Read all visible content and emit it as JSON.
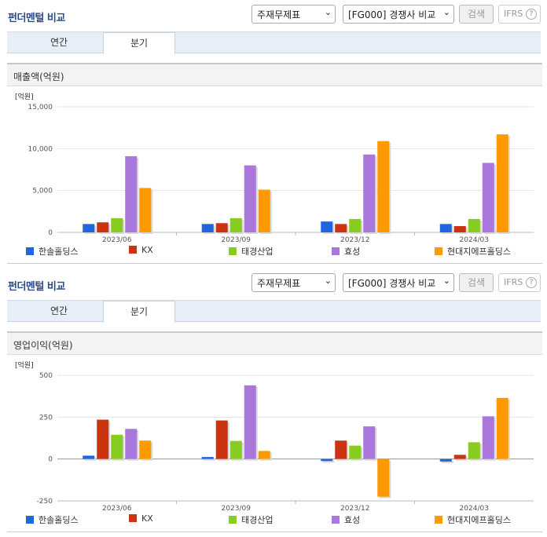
{
  "header": {
    "title": "펀더멘털 비교",
    "select_statement": "주재무제표",
    "select_peer": "[FG000] 경쟁사 비교",
    "search_label": "검색",
    "ifrs_label": "IFRS",
    "help_label": "?"
  },
  "tabs": {
    "annual": "연간",
    "quarterly": "분기"
  },
  "colors": {
    "한솔홀딩스": "#2266dd",
    "KX": "#cc3311",
    "태경산업": "#88cc22",
    "효성": "#aa77dd",
    "현대지에프홀딩스": "#ff9900"
  },
  "chart_data": [
    {
      "type": "bar",
      "title": "매출액(억원)",
      "unit": "[억원]",
      "categories": [
        "2023/06",
        "2023/09",
        "2023/12",
        "2024/03"
      ],
      "ylim": [
        0,
        15000
      ],
      "yticks": [
        0,
        5000,
        10000,
        15000
      ],
      "ytick_labels": [
        "0",
        "5,000",
        "10,000",
        "15,000"
      ],
      "series": [
        {
          "name": "한솔홀딩스",
          "values": [
            1000,
            1000,
            1300,
            1000
          ]
        },
        {
          "name": "KX",
          "values": [
            1200,
            1100,
            1000,
            750
          ]
        },
        {
          "name": "태경산업",
          "values": [
            1700,
            1700,
            1600,
            1600
          ]
        },
        {
          "name": "효성",
          "values": [
            9100,
            8000,
            9300,
            8300
          ]
        },
        {
          "name": "현대지에프홀딩스",
          "values": [
            5300,
            5100,
            10900,
            11700
          ]
        }
      ]
    },
    {
      "type": "bar",
      "title": "영업이익(억원)",
      "unit": "[억원]",
      "categories": [
        "2023/06",
        "2023/09",
        "2023/12",
        "2024/03"
      ],
      "ylim": [
        -250,
        500
      ],
      "yticks": [
        -250,
        0,
        250,
        500
      ],
      "ytick_labels": [
        "-250",
        "0",
        "250",
        "500"
      ],
      "series": [
        {
          "name": "한솔홀딩스",
          "values": [
            20,
            12,
            -12,
            -15
          ]
        },
        {
          "name": "KX",
          "values": [
            235,
            230,
            110,
            25
          ]
        },
        {
          "name": "태경산업",
          "values": [
            145,
            108,
            80,
            100
          ]
        },
        {
          "name": "효성",
          "values": [
            180,
            440,
            195,
            255
          ]
        },
        {
          "name": "현대지에프홀딩스",
          "values": [
            110,
            48,
            -225,
            365
          ]
        }
      ]
    }
  ]
}
